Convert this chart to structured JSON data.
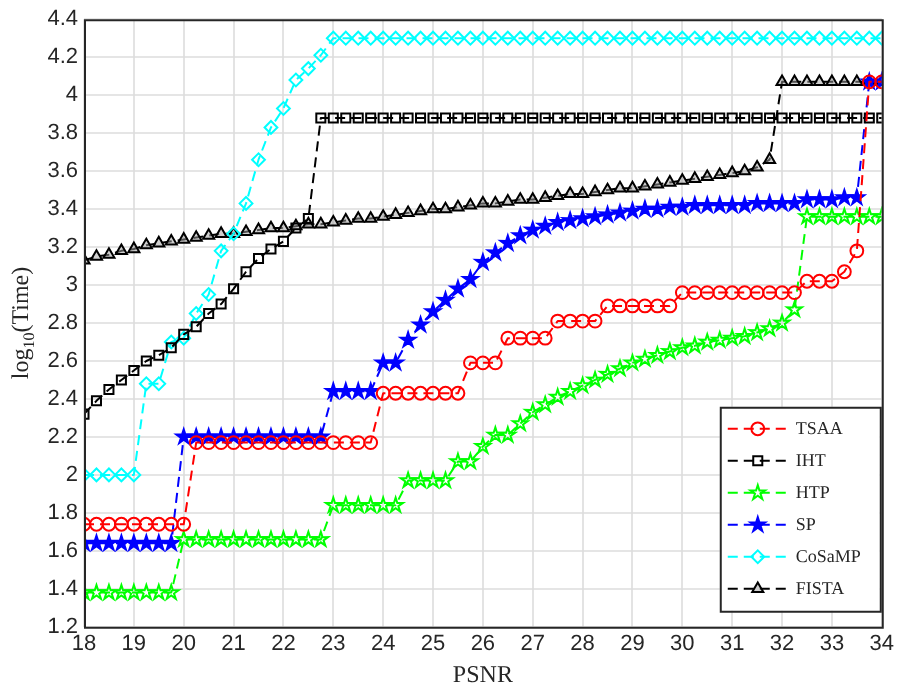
{
  "chart_data": {
    "type": "line",
    "xlabel": "PSNR",
    "ylabel": "log$_{10}$(Time)",
    "x": [
      18,
      18.25,
      18.5,
      18.75,
      19,
      19.25,
      19.5,
      19.75,
      20,
      20.25,
      20.5,
      20.75,
      21,
      21.25,
      21.5,
      21.75,
      22,
      22.25,
      22.5,
      22.75,
      23,
      23.25,
      23.5,
      23.75,
      24,
      24.25,
      24.5,
      24.75,
      25,
      25.25,
      25.5,
      25.75,
      26,
      26.25,
      26.5,
      26.75,
      27,
      27.25,
      27.5,
      27.75,
      28,
      28.25,
      28.5,
      28.75,
      29,
      29.25,
      29.5,
      29.75,
      30,
      30.25,
      30.5,
      30.75,
      31,
      31.25,
      31.5,
      31.75,
      32,
      32.25,
      32.5,
      32.75,
      33,
      33.25,
      33.5,
      33.75,
      34
    ],
    "series": [
      {
        "name": "TSAA",
        "color": "#ff0000",
        "marker": "circle",
        "values": [
          1.74,
          1.74,
          1.74,
          1.74,
          1.74,
          1.74,
          1.74,
          1.74,
          1.74,
          2.17,
          2.17,
          2.17,
          2.17,
          2.17,
          2.17,
          2.17,
          2.17,
          2.17,
          2.17,
          2.17,
          2.17,
          2.17,
          2.17,
          2.17,
          2.43,
          2.43,
          2.43,
          2.43,
          2.43,
          2.43,
          2.43,
          2.59,
          2.59,
          2.59,
          2.72,
          2.72,
          2.72,
          2.72,
          2.81,
          2.81,
          2.81,
          2.81,
          2.89,
          2.89,
          2.89,
          2.89,
          2.89,
          2.89,
          2.96,
          2.96,
          2.96,
          2.96,
          2.96,
          2.96,
          2.96,
          2.96,
          2.96,
          2.96,
          3.02,
          3.02,
          3.02,
          3.07,
          3.18,
          4.07,
          4.07
        ]
      },
      {
        "name": "IHT",
        "color": "#000000",
        "marker": "square",
        "values": [
          2.32,
          2.39,
          2.45,
          2.5,
          2.55,
          2.6,
          2.63,
          2.67,
          2.74,
          2.78,
          2.85,
          2.9,
          2.98,
          3.07,
          3.14,
          3.19,
          3.23,
          3.3,
          3.35,
          3.88,
          3.88,
          3.88,
          3.88,
          3.88,
          3.88,
          3.88,
          3.88,
          3.88,
          3.88,
          3.88,
          3.88,
          3.88,
          3.88,
          3.88,
          3.88,
          3.88,
          3.88,
          3.88,
          3.88,
          3.88,
          3.88,
          3.88,
          3.88,
          3.88,
          3.88,
          3.88,
          3.88,
          3.88,
          3.88,
          3.88,
          3.88,
          3.88,
          3.88,
          3.88,
          3.88,
          3.88,
          3.88,
          3.88,
          3.88,
          3.88,
          3.88,
          3.88,
          3.88,
          3.88,
          3.88
        ]
      },
      {
        "name": "HTP",
        "color": "#00ff00",
        "marker": "star",
        "values": [
          1.38,
          1.38,
          1.38,
          1.38,
          1.38,
          1.38,
          1.38,
          1.38,
          1.66,
          1.66,
          1.66,
          1.66,
          1.66,
          1.66,
          1.66,
          1.66,
          1.66,
          1.66,
          1.66,
          1.66,
          1.84,
          1.84,
          1.84,
          1.84,
          1.84,
          1.84,
          1.97,
          1.97,
          1.97,
          1.97,
          2.07,
          2.07,
          2.15,
          2.21,
          2.21,
          2.27,
          2.33,
          2.37,
          2.41,
          2.44,
          2.47,
          2.5,
          2.53,
          2.56,
          2.59,
          2.61,
          2.63,
          2.65,
          2.67,
          2.68,
          2.7,
          2.71,
          2.72,
          2.73,
          2.75,
          2.77,
          2.8,
          2.87,
          3.36,
          3.36,
          3.36,
          3.36,
          3.36,
          3.36,
          3.36
        ]
      },
      {
        "name": "SP",
        "color": "#0000ff",
        "marker": "star",
        "values": [
          1.64,
          1.64,
          1.64,
          1.64,
          1.64,
          1.64,
          1.64,
          1.64,
          2.2,
          2.2,
          2.2,
          2.2,
          2.2,
          2.2,
          2.2,
          2.2,
          2.2,
          2.2,
          2.2,
          2.2,
          2.44,
          2.44,
          2.44,
          2.44,
          2.59,
          2.59,
          2.71,
          2.79,
          2.86,
          2.92,
          2.98,
          3.03,
          3.12,
          3.17,
          3.22,
          3.26,
          3.29,
          3.31,
          3.33,
          3.34,
          3.35,
          3.36,
          3.37,
          3.38,
          3.39,
          3.4,
          3.4,
          3.41,
          3.41,
          3.42,
          3.42,
          3.42,
          3.42,
          3.42,
          3.43,
          3.43,
          3.43,
          3.43,
          3.45,
          3.45,
          3.45,
          3.46,
          3.46,
          4.07,
          4.07
        ]
      },
      {
        "name": "CoSaMP",
        "color": "#00ffff",
        "marker": "diamond",
        "values": [
          2,
          2,
          2,
          2,
          2,
          2.48,
          2.48,
          2.7,
          2.72,
          2.85,
          2.95,
          3.18,
          3.27,
          3.43,
          3.66,
          3.83,
          3.93,
          4.08,
          4.14,
          4.21,
          4.3,
          4.3,
          4.3,
          4.3,
          4.3,
          4.3,
          4.3,
          4.3,
          4.3,
          4.3,
          4.3,
          4.3,
          4.3,
          4.3,
          4.3,
          4.3,
          4.3,
          4.3,
          4.3,
          4.3,
          4.3,
          4.3,
          4.3,
          4.3,
          4.3,
          4.3,
          4.3,
          4.3,
          4.3,
          4.3,
          4.3,
          4.3,
          4.3,
          4.3,
          4.3,
          4.3,
          4.3,
          4.3,
          4.3,
          4.3,
          4.3,
          4.3,
          4.3,
          4.3,
          4.3
        ]
      },
      {
        "name": "FISTA",
        "color": "#000000",
        "marker": "triangle",
        "values": [
          3.13,
          3.15,
          3.16,
          3.18,
          3.19,
          3.21,
          3.22,
          3.23,
          3.24,
          3.25,
          3.26,
          3.27,
          3.27,
          3.28,
          3.29,
          3.3,
          3.3,
          3.31,
          3.32,
          3.32,
          3.33,
          3.34,
          3.35,
          3.35,
          3.36,
          3.37,
          3.38,
          3.39,
          3.4,
          3.4,
          3.41,
          3.42,
          3.43,
          3.43,
          3.44,
          3.45,
          3.45,
          3.46,
          3.47,
          3.48,
          3.48,
          3.49,
          3.5,
          3.51,
          3.51,
          3.52,
          3.53,
          3.54,
          3.55,
          3.56,
          3.57,
          3.58,
          3.59,
          3.6,
          3.62,
          3.66,
          4.07,
          4.07,
          4.07,
          4.07,
          4.07,
          4.07,
          4.07,
          4.07,
          4.07
        ]
      }
    ],
    "xlim": [
      18,
      34
    ],
    "xticks": [
      18,
      19,
      20,
      21,
      22,
      23,
      24,
      25,
      26,
      27,
      28,
      29,
      30,
      31,
      32,
      33,
      34
    ],
    "ylim": [
      1.2,
      4.4
    ],
    "yticks": [
      1.2,
      1.4,
      1.6,
      1.8,
      2,
      2.2,
      2.4,
      2.6,
      2.8,
      3,
      3.2,
      3.4,
      3.6,
      3.8,
      4,
      4.2,
      4.4
    ],
    "grid": true,
    "legend": "bottom right",
    "line_style": "dashed"
  }
}
